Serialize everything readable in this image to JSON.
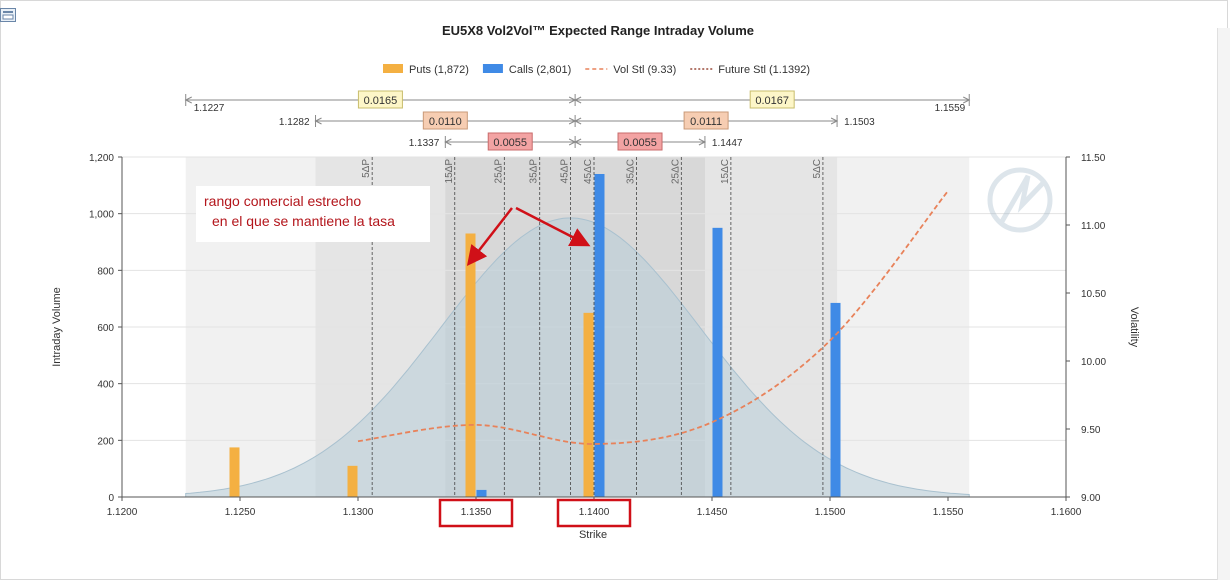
{
  "chart_data": {
    "type": "bar",
    "title": "EU5X8 Vol2Vol™ Expected Range Intraday Volume",
    "xlabel": "Strike",
    "ylabel": "Intraday Volume",
    "y2label": "Volatility",
    "xlim": [
      1.12,
      1.16
    ],
    "xticks": [
      "1.1200",
      "1.1250",
      "1.1300",
      "1.1350",
      "1.1400",
      "1.1450",
      "1.1500",
      "1.1550",
      "1.1600"
    ],
    "ylim": [
      0,
      1200
    ],
    "yticks": [
      "0",
      "200",
      "400",
      "600",
      "800",
      "1,000",
      "1,200"
    ],
    "y2lim": [
      9.0,
      11.5
    ],
    "y2ticks": [
      "9.00",
      "9.50",
      "10.00",
      "10.50",
      "11.00",
      "11.50"
    ],
    "grid": true,
    "legend_position": "top-center",
    "legend": [
      {
        "label": "Puts (1,872)",
        "kind": "bar",
        "color": "#f4b042"
      },
      {
        "label": "Calls (2,801)",
        "kind": "bar",
        "color": "#3f8ae6"
      },
      {
        "label": "Vol Stl (9.33)",
        "kind": "dash",
        "color": "#e8825a"
      },
      {
        "label": "Future Stl (1.1392)",
        "kind": "dot",
        "color": "#9a4b3a"
      }
    ],
    "series": [
      {
        "name": "Puts",
        "color": "#f4b042",
        "points": [
          [
            1.125,
            175
          ],
          [
            1.13,
            110
          ],
          [
            1.135,
            930
          ],
          [
            1.14,
            650
          ]
        ]
      },
      {
        "name": "Calls",
        "color": "#3f8ae6",
        "points": [
          [
            1.135,
            25
          ],
          [
            1.14,
            1140
          ],
          [
            1.145,
            950
          ],
          [
            1.15,
            685
          ]
        ]
      },
      {
        "name": "Vol Stl",
        "color": "#e8825a",
        "points": [
          [
            1.13,
            9.41
          ],
          [
            1.135,
            9.53
          ],
          [
            1.14,
            9.39
          ],
          [
            1.145,
            9.55
          ],
          [
            1.15,
            10.15
          ],
          [
            1.155,
            11.25
          ]
        ]
      }
    ],
    "distribution": {
      "mean": 1.139,
      "peak_volume": 985,
      "sd": 0.0055,
      "color": "#b8cdd9"
    },
    "expected_bands": [
      {
        "low": 1.1227,
        "high": 1.1559,
        "shade": "#ececec"
      },
      {
        "low": 1.1282,
        "high": 1.1503,
        "shade": "#e0e0e0"
      },
      {
        "low": 1.1337,
        "high": 1.1447,
        "shade": "#d3d3d3"
      }
    ],
    "delta_lines": [
      {
        "label": "5ΔP",
        "x": 1.1306
      },
      {
        "label": "15ΔP",
        "x": 1.1341
      },
      {
        "label": "25ΔP",
        "x": 1.1362
      },
      {
        "label": "35ΔP",
        "x": 1.1377
      },
      {
        "label": "45ΔP",
        "x": 1.139
      },
      {
        "label": "45ΔC",
        "x": 1.14
      },
      {
        "label": "35ΔC",
        "x": 1.1418
      },
      {
        "label": "25ΔC",
        "x": 1.1437
      },
      {
        "label": "15ΔC",
        "x": 1.1458
      },
      {
        "label": "5ΔC",
        "x": 1.1497
      }
    ],
    "range_rows": [
      {
        "left_label": "1.1227",
        "right_label": "1.1559",
        "left_x": 1.1227,
        "right_x": 1.1559,
        "left_width": "0.0165",
        "right_width": "0.0167",
        "box_color": "#fdf6c8",
        "box_border": "#c9bd6c"
      },
      {
        "left_label": "1.1282",
        "right_label": "1.1503",
        "left_x": 1.1282,
        "right_x": 1.1503,
        "left_width": "0.0110",
        "right_width": "0.0111",
        "box_color": "#f6cdb2",
        "box_border": "#c99a78"
      },
      {
        "left_label": "1.1337",
        "right_label": "1.1447",
        "left_x": 1.1337,
        "right_x": 1.1447,
        "left_width": "0.0055",
        "right_width": "0.0055",
        "box_color": "#f3a3a3",
        "box_border": "#c86b6b"
      }
    ],
    "future_settlement": 1.1392
  },
  "annotation": {
    "line1": "rango comercial estrecho",
    "line2": "en el que se mantiene la tasa",
    "color": "#b3151b",
    "highlighted_ticks": [
      "1.1350",
      "1.1400"
    ]
  },
  "colors": {
    "grid": "#e3e3e3",
    "axis": "#555555",
    "highlight": "#d01018"
  }
}
